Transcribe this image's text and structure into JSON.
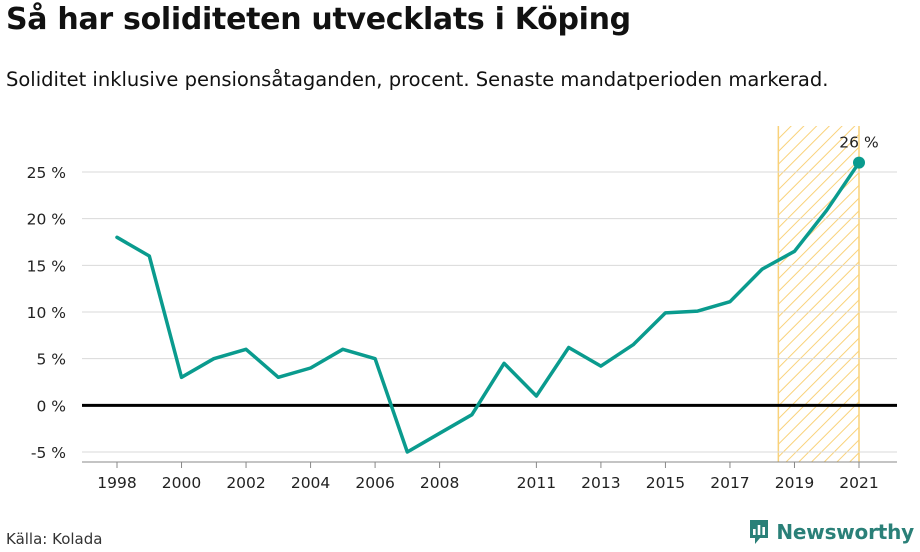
{
  "title": "Så har soliditeten utvecklats i Köping",
  "subtitle": "Soliditet inklusive pensionsåtaganden, procent. Senaste mandatperioden markerad.",
  "source": "Källa: Kolada",
  "brand": "Newsworthy",
  "colors": {
    "line": "#0a9b8e",
    "highlight": "#f9d27a",
    "zero_line": "#000000",
    "grid": "#d9d9d9",
    "brand": "#2a8078"
  },
  "chart_data": {
    "type": "line",
    "x": [
      1998,
      1999,
      2000,
      2001,
      2002,
      2003,
      2004,
      2005,
      2006,
      2007,
      2008,
      2009,
      2010,
      2011,
      2012,
      2013,
      2014,
      2015,
      2016,
      2017,
      2018,
      2019,
      2020,
      2021
    ],
    "series": [
      {
        "values": [
          18.0,
          16.0,
          3.0,
          5.0,
          6.0,
          3.0,
          4.0,
          6.0,
          5.0,
          -5.0,
          -3.0,
          -1.0,
          4.5,
          1.0,
          6.2,
          4.2,
          6.5,
          9.9,
          10.1,
          11.1,
          14.6,
          16.5,
          20.9,
          26.0
        ]
      }
    ],
    "x_ticks": [
      1998,
      2000,
      2002,
      2004,
      2006,
      2008,
      2011,
      2013,
      2015,
      2017,
      2019,
      2021
    ],
    "y_ticks": [
      -5,
      0,
      5,
      10,
      15,
      20,
      25
    ],
    "y_tick_suffix": " %",
    "ylim": [
      -5.5,
      30
    ],
    "xlim": [
      1997,
      2022
    ],
    "grid": true,
    "highlight_period": [
      2018.5,
      2021
    ],
    "annotation": {
      "x": 2021,
      "y": 26,
      "text": "26 %"
    }
  }
}
